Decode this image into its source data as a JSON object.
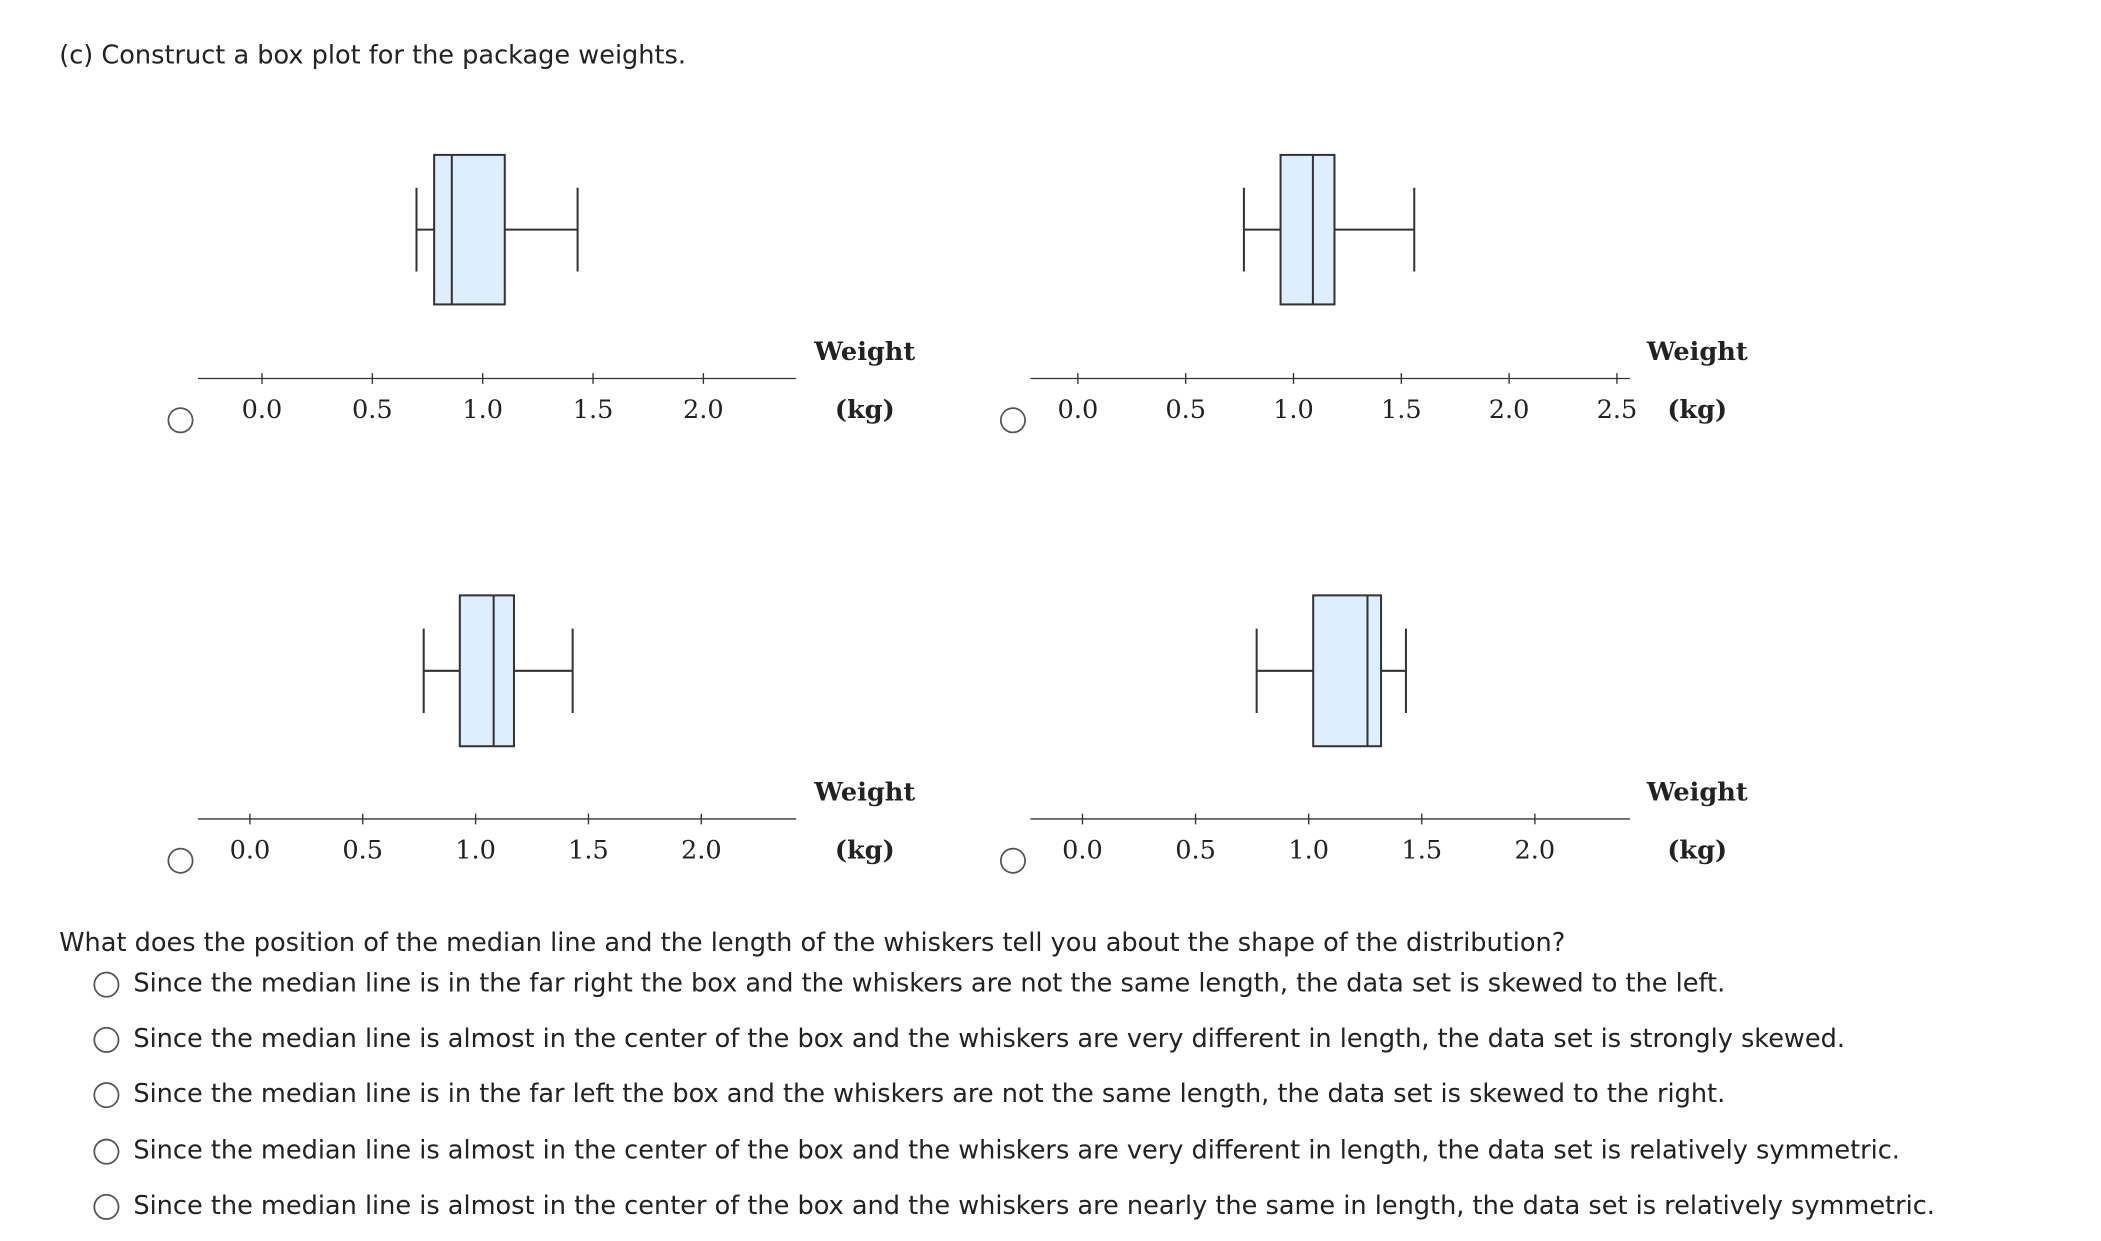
{
  "prompt": "(c) Construct a box plot for the package weights.",
  "chart_data": [
    {
      "type": "box",
      "xlim": [
        -0.29,
        2.42
      ],
      "xticks": [
        {
          "value": 0,
          "label": "0.0"
        },
        0.5,
        {
          "value": 1,
          "label": "1.0"
        },
        1.5,
        {
          "value": 2,
          "label": "2.0"
        }
      ],
      "xlabel": [
        "Weight",
        "(kg)"
      ],
      "min": 0.7,
      "q1": 0.78,
      "median": 0.86,
      "q3": 1.1,
      "max": 1.43
    },
    {
      "type": "box",
      "xlim": [
        -0.22,
        2.56
      ],
      "xticks": [
        {
          "value": 0,
          "label": "0.0"
        },
        0.5,
        {
          "value": 1,
          "label": "1.0"
        },
        1.5,
        {
          "value": 2,
          "label": "2.0"
        },
        2.5
      ],
      "xlabel": [
        "Weight",
        "(kg)"
      ],
      "min": 0.77,
      "q1": 0.94,
      "median": 1.09,
      "q3": 1.19,
      "max": 1.56
    },
    {
      "type": "box",
      "xlim": [
        -0.23,
        2.42
      ],
      "xticks": [
        {
          "value": 0,
          "label": "0.0"
        },
        0.5,
        {
          "value": 1,
          "label": "1.0"
        },
        1.5,
        {
          "value": 2,
          "label": "2.0"
        }
      ],
      "xlabel": [
        "Weight",
        "(kg)"
      ],
      "min": 0.77,
      "q1": 0.93,
      "median": 1.08,
      "q3": 1.17,
      "max": 1.43
    },
    {
      "type": "box",
      "xlim": [
        -0.23,
        2.42
      ],
      "xticks": [
        {
          "value": 0,
          "label": "0.0"
        },
        0.5,
        {
          "value": 1,
          "label": "1.0"
        },
        1.5,
        {
          "value": 2,
          "label": "2.0"
        }
      ],
      "xlabel": [
        "Weight",
        "(kg)"
      ],
      "min": 0.77,
      "q1": 1.02,
      "median": 1.26,
      "q3": 1.32,
      "max": 1.43
    }
  ],
  "question": "What does the position of the median line and the length of the whiskers tell you about the shape of the distribution?",
  "options": [
    "Since the median line is in the far right the box and the whiskers are not the same length, the data set is skewed to the left.",
    "Since the median line is almost in the center of the box and the whiskers are very different in length, the data set is strongly skewed.",
    "Since the median line is in the far left the box and the whiskers are not the same length, the data set is skewed to the right.",
    "Since the median line is almost in the center of the box and the whiskers are very different in length, the data set is relatively symmetric.",
    "Since the median line is almost in the center of the box and the whiskers are nearly the same in length, the data set is relatively symmetric."
  ]
}
